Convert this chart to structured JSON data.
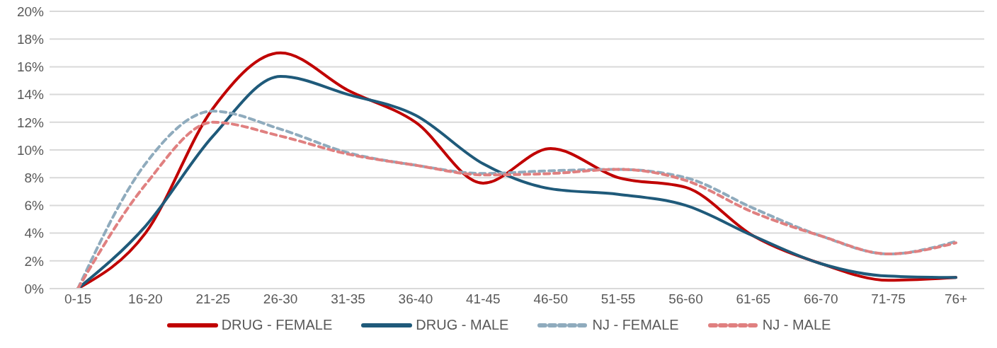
{
  "chart_data": {
    "type": "line",
    "categories": [
      "0-15",
      "16-20",
      "21-25",
      "26-30",
      "31-35",
      "36-40",
      "41-45",
      "46-50",
      "51-55",
      "56-60",
      "61-65",
      "66-70",
      "71-75",
      "76+"
    ],
    "series": [
      {
        "name": "DRUG - FEMALE",
        "color": "#c00000",
        "line_style": "solid",
        "values": [
          0,
          4,
          13,
          17,
          14.3,
          12,
          7.6,
          10.1,
          8,
          7.3,
          3.8,
          1.8,
          0.6,
          0.8
        ]
      },
      {
        "name": "DRUG - MALE",
        "color": "#1f5a7a",
        "line_style": "solid",
        "values": [
          0,
          4.5,
          11,
          15.3,
          14,
          12.5,
          9,
          7.2,
          6.8,
          6,
          3.8,
          1.8,
          0.9,
          0.8
        ]
      },
      {
        "name": "NJ - FEMALE",
        "color": "#8fabbd",
        "line_style": "dashed",
        "values": [
          0,
          9,
          12.8,
          11.5,
          9.8,
          8.9,
          8.3,
          8.5,
          8.6,
          8,
          5.8,
          3.8,
          2.5,
          3.4
        ]
      },
      {
        "name": "NJ - MALE",
        "color": "#e08080",
        "line_style": "dashed",
        "values": [
          0,
          7.5,
          12,
          11,
          9.7,
          8.9,
          8.2,
          8.3,
          8.6,
          7.8,
          5.5,
          3.8,
          2.5,
          3.3
        ]
      }
    ],
    "ylim": [
      0,
      20
    ],
    "yticks": [
      {
        "value": 0,
        "label": "0%"
      },
      {
        "value": 2,
        "label": "2%"
      },
      {
        "value": 4,
        "label": "4%"
      },
      {
        "value": 6,
        "label": "6%"
      },
      {
        "value": 8,
        "label": "8%"
      },
      {
        "value": 10,
        "label": "10%"
      },
      {
        "value": 12,
        "label": "12%"
      },
      {
        "value": 14,
        "label": "14%"
      },
      {
        "value": 16,
        "label": "16%"
      },
      {
        "value": 18,
        "label": "18%"
      },
      {
        "value": 20,
        "label": "20%"
      }
    ],
    "grid": "y",
    "legend": "bottom",
    "marker": "none"
  }
}
